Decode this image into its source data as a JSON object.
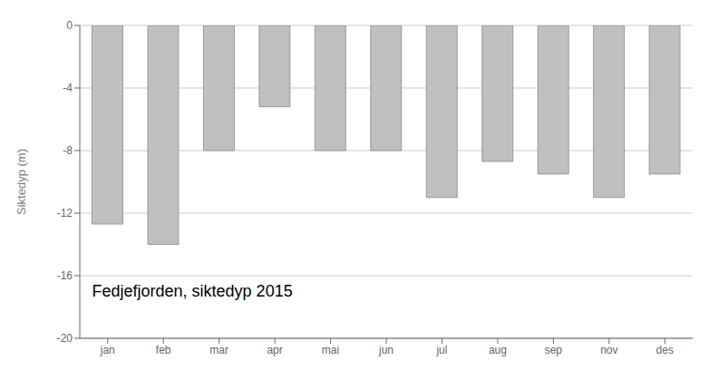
{
  "chart_data": {
    "type": "bar",
    "categories": [
      "jan",
      "feb",
      "mar",
      "apr",
      "mai",
      "jun",
      "jul",
      "aug",
      "sep",
      "nov",
      "des"
    ],
    "values": [
      -12.7,
      -14.0,
      -8.0,
      -5.2,
      -8.0,
      -8.0,
      -11.0,
      -8.7,
      -9.5,
      -11.0,
      -9.5
    ],
    "color": "#c0c0c0",
    "ylabel": "Siktedyp (m)",
    "annotation": "Fedjefjorden, siktedyp 2015",
    "ylim": [
      -20,
      0
    ],
    "yticks": [
      0,
      -4,
      -8,
      -12,
      -16,
      -20
    ],
    "grid": true
  }
}
